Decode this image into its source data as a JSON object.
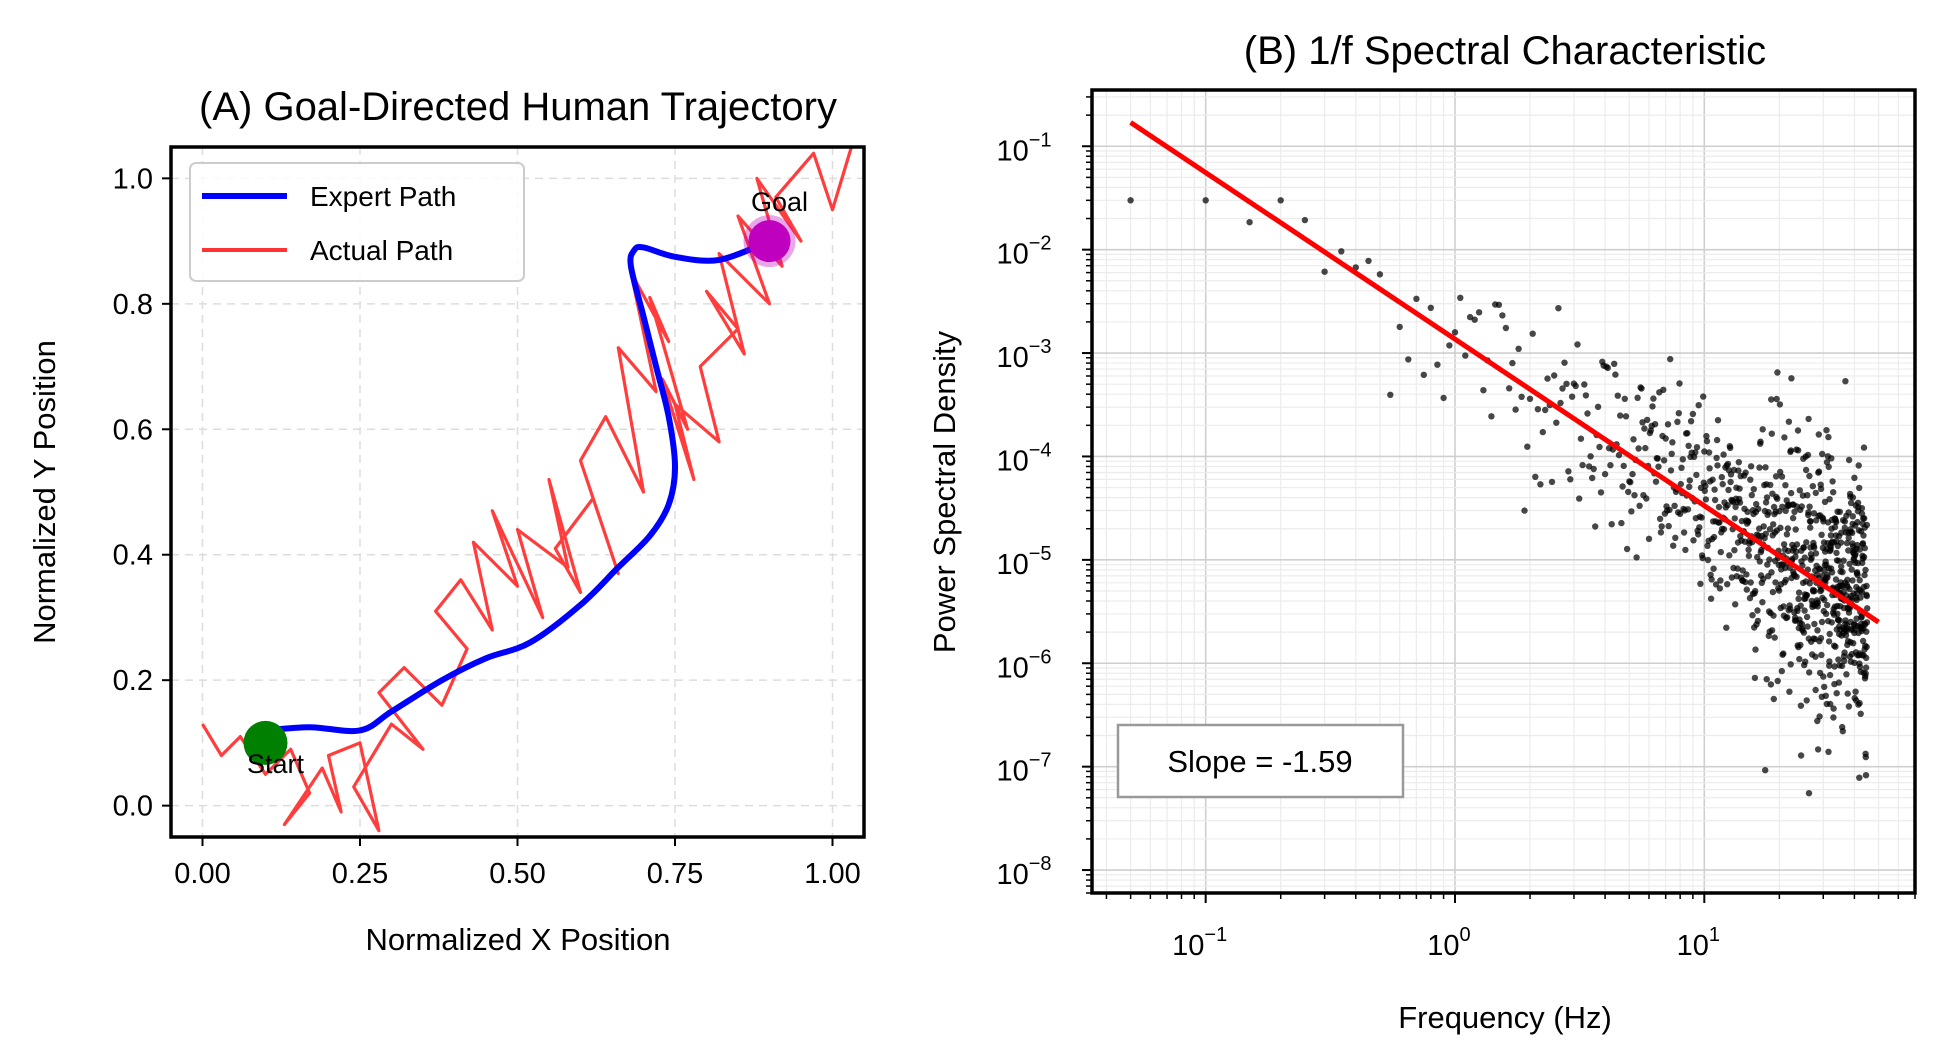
{
  "chart_data": [
    {
      "type": "line",
      "title": "(A) Goal-Directed Human Trajectory",
      "xlabel": "Normalized X Position",
      "ylabel": "Normalized Y Position",
      "xlim": [
        -0.05,
        1.05
      ],
      "ylim": [
        -0.05,
        1.05
      ],
      "xticks": [
        0.0,
        0.25,
        0.5,
        0.75,
        1.0
      ],
      "xtick_labels": [
        "0.00",
        "0.25",
        "0.50",
        "0.75",
        "1.00"
      ],
      "yticks": [
        0.0,
        0.2,
        0.4,
        0.6,
        0.8,
        1.0
      ],
      "ytick_labels": [
        "0.0",
        "0.2",
        "0.4",
        "0.6",
        "0.8",
        "1.0"
      ],
      "grid": true,
      "legend": {
        "position": "top-left",
        "entries": [
          "Expert Path",
          "Actual Path"
        ]
      },
      "colors": {
        "expert": "#0000ff",
        "actual": "#ff3333",
        "start": "#008000",
        "goal": "#bf00bf"
      },
      "start": {
        "x": 0.1,
        "y": 0.1,
        "label": "Start"
      },
      "goal": {
        "x": 0.9,
        "y": 0.9,
        "label": "Goal"
      },
      "series": [
        {
          "name": "Expert Path",
          "x": [
            0.1,
            0.17,
            0.25,
            0.3,
            0.38,
            0.45,
            0.52,
            0.6,
            0.66,
            0.71,
            0.74,
            0.75,
            0.74,
            0.72,
            0.7,
            0.68,
            0.685,
            0.7,
            0.75,
            0.82,
            0.9
          ],
          "y": [
            0.12,
            0.125,
            0.12,
            0.15,
            0.2,
            0.235,
            0.26,
            0.32,
            0.38,
            0.43,
            0.48,
            0.54,
            0.62,
            0.7,
            0.78,
            0.86,
            0.885,
            0.89,
            0.875,
            0.87,
            0.9
          ]
        },
        {
          "name": "Actual Path",
          "x": [
            0.0,
            0.03,
            0.06,
            0.1,
            0.14,
            0.17,
            0.13,
            0.19,
            0.22,
            0.2,
            0.25,
            0.28,
            0.24,
            0.3,
            0.35,
            0.28,
            0.32,
            0.38,
            0.42,
            0.37,
            0.41,
            0.46,
            0.43,
            0.5,
            0.46,
            0.54,
            0.5,
            0.58,
            0.55,
            0.6,
            0.56,
            0.62,
            0.66,
            0.6,
            0.64,
            0.7,
            0.66,
            0.72,
            0.68,
            0.74,
            0.71,
            0.77,
            0.73,
            0.78,
            0.75,
            0.82,
            0.79,
            0.85,
            0.8,
            0.86,
            0.82,
            0.9,
            0.85,
            0.92,
            0.88,
            0.95,
            0.91,
            0.97,
            1.0,
            1.03
          ],
          "y": [
            0.13,
            0.08,
            0.11,
            0.05,
            0.09,
            0.02,
            -0.03,
            0.06,
            -0.01,
            0.08,
            0.1,
            -0.04,
            0.03,
            0.13,
            0.09,
            0.18,
            0.22,
            0.16,
            0.25,
            0.31,
            0.36,
            0.28,
            0.42,
            0.35,
            0.47,
            0.3,
            0.44,
            0.38,
            0.52,
            0.34,
            0.41,
            0.49,
            0.37,
            0.55,
            0.62,
            0.5,
            0.73,
            0.66,
            0.85,
            0.74,
            0.81,
            0.6,
            0.68,
            0.52,
            0.64,
            0.58,
            0.7,
            0.76,
            0.82,
            0.72,
            0.88,
            0.8,
            0.94,
            0.86,
            1.0,
            0.9,
            0.97,
            1.04,
            0.95,
            1.05
          ]
        }
      ]
    },
    {
      "type": "scatter",
      "title": "(B) 1/f Spectral Characteristic",
      "xlabel": "Frequency (Hz)",
      "ylabel": "Power Spectral Density",
      "xscale": "log",
      "yscale": "log",
      "xlim": [
        0.035,
        70
      ],
      "ylim": [
        6e-09,
        0.35
      ],
      "xticks": [
        0.1,
        1,
        10
      ],
      "xtick_bases": [
        "10",
        "10",
        "10"
      ],
      "xtick_exponents": [
        "−1",
        "0",
        "1"
      ],
      "yticks": [
        1e-08,
        1e-07,
        1e-06,
        1e-05,
        0.0001,
        0.001,
        0.01,
        0.1
      ],
      "ytick_bases": [
        "10",
        "10",
        "10",
        "10",
        "10",
        "10",
        "10",
        "10"
      ],
      "ytick_exponents": [
        "−8",
        "−7",
        "−6",
        "−5",
        "−4",
        "−3",
        "−2",
        "−1"
      ],
      "grid": true,
      "colors": {
        "points": "#000000",
        "fit": "#ff0000"
      },
      "fit_line": {
        "x": [
          0.05,
          50
        ],
        "y": [
          0.17,
          2.5e-06
        ],
        "slope": -1.59
      },
      "annotation": "Slope = -1.59",
      "points_description_free_parameters": {
        "count": 900,
        "x_range": [
          0.05,
          50
        ],
        "slope": -1.59,
        "intercept_at_1hz": 0.0014,
        "scatter_decades_sigma": 0.55
      }
    }
  ]
}
